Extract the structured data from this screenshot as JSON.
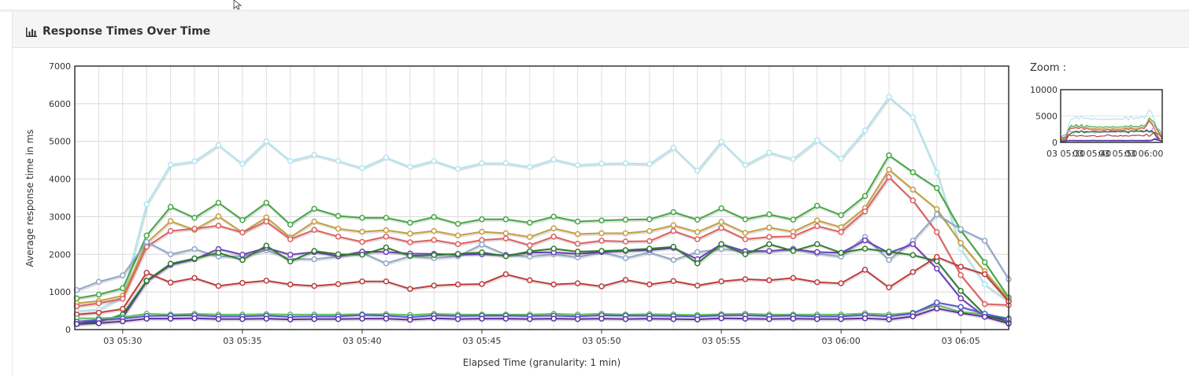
{
  "panel": {
    "title": "Response Times Over Time",
    "icon": "bar-chart-icon"
  },
  "zoom": {
    "label": "Zoom :",
    "y_ticks": [
      "10000",
      "5000",
      "0"
    ],
    "x_ticks": [
      "03 05:30",
      "03 05:40",
      "03 05:50",
      "03 06:00"
    ]
  },
  "chart_data": {
    "type": "line",
    "xlabel": "Elapsed Time (granularity: 1 min)",
    "ylabel": "Average response time in ms",
    "ylim": [
      0,
      7000
    ],
    "y_ticks": [
      "0",
      "1000",
      "2000",
      "3000",
      "4000",
      "5000",
      "6000",
      "7000"
    ],
    "x_ticks": [
      "03 05:30",
      "03 05:35",
      "03 05:40",
      "03 05:45",
      "03 05:50",
      "03 05:55",
      "03 06:00",
      "03 06:05"
    ],
    "grid": true,
    "x_minutes": [
      -1.92,
      -1,
      0,
      1,
      2,
      3,
      4,
      5,
      6,
      7,
      8,
      9,
      10,
      11,
      12,
      13,
      14,
      15,
      16,
      17,
      18,
      19,
      20,
      21,
      22,
      23,
      24,
      25,
      26,
      27,
      28,
      29,
      30,
      31,
      32,
      33,
      34,
      35,
      36,
      37
    ],
    "series": [
      {
        "color": "#b0e6ef",
        "values": [
          500,
          530,
          880,
          3330,
          4380,
          4470,
          4900,
          4400,
          5000,
          4480,
          4640,
          4480,
          4290,
          4570,
          4320,
          4480,
          4270,
          4420,
          4420,
          4320,
          4520,
          4370,
          4410,
          4420,
          4400,
          4830,
          4220,
          4990,
          4370,
          4700,
          4530,
          5030,
          4540,
          5290,
          6180,
          5640,
          4170,
          2150,
          1200,
          750
        ]
      },
      {
        "color": "#45a845",
        "values": [
          830,
          930,
          1100,
          2500,
          3260,
          2970,
          3370,
          2910,
          3370,
          2790,
          3210,
          3020,
          2970,
          2970,
          2840,
          2990,
          2810,
          2930,
          2930,
          2840,
          3000,
          2870,
          2900,
          2920,
          2930,
          3120,
          2920,
          3220,
          2930,
          3060,
          2920,
          3290,
          3040,
          3550,
          4630,
          4180,
          3760,
          2640,
          1790,
          850
        ]
      },
      {
        "color": "#c4a040",
        "values": [
          700,
          760,
          900,
          2300,
          2880,
          2650,
          3010,
          2580,
          2980,
          2450,
          2870,
          2680,
          2600,
          2640,
          2550,
          2620,
          2500,
          2600,
          2560,
          2460,
          2690,
          2540,
          2560,
          2560,
          2620,
          2770,
          2590,
          2860,
          2570,
          2710,
          2600,
          2900,
          2720,
          3230,
          4250,
          3720,
          3200,
          2300,
          1550,
          800
        ]
      },
      {
        "color": "#e06060",
        "values": [
          620,
          700,
          820,
          2200,
          2620,
          2680,
          2760,
          2580,
          2870,
          2400,
          2650,
          2470,
          2330,
          2470,
          2320,
          2380,
          2270,
          2380,
          2420,
          2240,
          2470,
          2280,
          2360,
          2340,
          2350,
          2620,
          2400,
          2700,
          2400,
          2460,
          2480,
          2750,
          2590,
          3140,
          4050,
          3430,
          2590,
          1450,
          680,
          650
        ]
      },
      {
        "color": "#8ea8c8",
        "values": [
          1050,
          1270,
          1440,
          2330,
          2000,
          2140,
          1940,
          1950,
          2110,
          1880,
          1870,
          1940,
          2040,
          1760,
          1950,
          1900,
          1950,
          2260,
          1990,
          1940,
          2000,
          1920,
          2060,
          1900,
          2050,
          1850,
          2060,
          2140,
          2090,
          2080,
          2150,
          2020,
          1940,
          2460,
          1850,
          2360,
          3060,
          2670,
          2360,
          1340
        ]
      },
      {
        "color": "#7040c0",
        "values": [
          150,
          250,
          320,
          1280,
          1720,
          1870,
          2140,
          1990,
          2170,
          1990,
          2060,
          1950,
          2070,
          2060,
          2020,
          2010,
          1990,
          2000,
          1970,
          2050,
          2050,
          2010,
          2060,
          2090,
          2110,
          2170,
          1870,
          2270,
          2080,
          2090,
          2130,
          2060,
          2040,
          2370,
          2040,
          2270,
          1620,
          830,
          350,
          280
        ]
      },
      {
        "color": "#2e7d2e",
        "values": [
          150,
          210,
          400,
          1300,
          1750,
          1890,
          2040,
          1850,
          2230,
          1810,
          2090,
          2000,
          1990,
          2180,
          1960,
          1980,
          2010,
          2050,
          1950,
          2080,
          2150,
          2070,
          2090,
          2110,
          2150,
          2200,
          1760,
          2270,
          2000,
          2270,
          2090,
          2270,
          2040,
          2150,
          2070,
          1980,
          1820,
          1030,
          400,
          200
        ]
      },
      {
        "color": "#c03c3c",
        "values": [
          400,
          450,
          550,
          1510,
          1250,
          1370,
          1160,
          1240,
          1300,
          1200,
          1160,
          1210,
          1280,
          1280,
          1080,
          1170,
          1200,
          1210,
          1470,
          1310,
          1200,
          1230,
          1150,
          1320,
          1200,
          1290,
          1170,
          1280,
          1340,
          1310,
          1370,
          1260,
          1230,
          1590,
          1120,
          1530,
          1930,
          1670,
          1470,
          750
        ]
      },
      {
        "color": "#60c060",
        "values": [
          300,
          300,
          330,
          420,
          400,
          420,
          400,
          400,
          410,
          400,
          400,
          400,
          410,
          410,
          390,
          420,
          400,
          400,
          400,
          400,
          420,
          400,
          420,
          400,
          410,
          400,
          390,
          410,
          420,
          400,
          400,
          400,
          400,
          430,
          400,
          450,
          650,
          470,
          400,
          300
        ]
      },
      {
        "color": "#5858d0",
        "values": [
          210,
          260,
          290,
          360,
          370,
          380,
          350,
          350,
          370,
          340,
          350,
          350,
          390,
          370,
          330,
          380,
          360,
          370,
          370,
          360,
          370,
          350,
          380,
          370,
          370,
          360,
          350,
          380,
          380,
          360,
          370,
          350,
          350,
          390,
          350,
          430,
          720,
          600,
          420,
          280
        ]
      },
      {
        "color": "#6030a0",
        "values": [
          150,
          170,
          220,
          290,
          290,
          300,
          280,
          280,
          290,
          270,
          280,
          280,
          290,
          290,
          260,
          300,
          280,
          290,
          290,
          280,
          290,
          280,
          290,
          280,
          290,
          280,
          270,
          300,
          290,
          280,
          290,
          280,
          280,
          300,
          270,
          350,
          560,
          440,
          340,
          160
        ]
      }
    ]
  }
}
